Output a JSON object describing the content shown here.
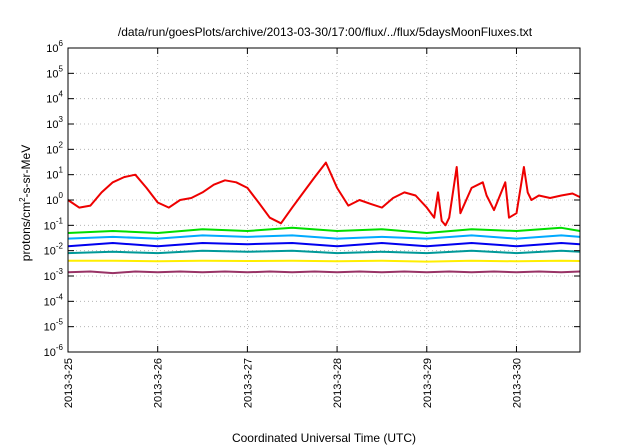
{
  "chart_data": {
    "type": "line",
    "title": "/data/run/goesPlots/archive/2013-03-30/17:00/flux/../flux/5daysMoonFluxes.txt",
    "xlabel": "Coordinated Universal Time (UTC)",
    "ylabel": {
      "prefix": "protons/cm",
      "exponent": "2",
      "suffix": "-s-sr-MeV"
    },
    "yscale": "log",
    "ylim": [
      1e-06,
      1000000.0
    ],
    "xlim": [
      "2013-03-25",
      "2013-03-30 17:00"
    ],
    "grid": true,
    "legend": "none",
    "x_ticks": [
      "2013-3-25",
      "2013-3-26",
      "2013-3-27",
      "2013-3-28",
      "2013-3-29",
      "2013-3-30"
    ],
    "y_ticks": [
      {
        "base": "10",
        "exp": "-6"
      },
      {
        "base": "10",
        "exp": "-5"
      },
      {
        "base": "10",
        "exp": "-4"
      },
      {
        "base": "10",
        "exp": "-3"
      },
      {
        "base": "10",
        "exp": "-2"
      },
      {
        "base": "10",
        "exp": "-1"
      },
      {
        "base": "10",
        "exp": "0"
      },
      {
        "base": "10",
        "exp": "1"
      },
      {
        "base": "10",
        "exp": "2"
      },
      {
        "base": "10",
        "exp": "3"
      },
      {
        "base": "10",
        "exp": "4"
      },
      {
        "base": "10",
        "exp": "5"
      },
      {
        "base": "10",
        "exp": "6"
      }
    ],
    "series": [
      {
        "color": "#ee0000",
        "x": [
          "2013-03-25 00:00",
          "2013-03-25 03:00",
          "2013-03-25 06:00",
          "2013-03-25 09:00",
          "2013-03-25 12:00",
          "2013-03-25 15:00",
          "2013-03-25 18:00",
          "2013-03-25 21:00",
          "2013-03-26 00:00",
          "2013-03-26 03:00",
          "2013-03-26 06:00",
          "2013-03-26 09:00",
          "2013-03-26 12:00",
          "2013-03-26 15:00",
          "2013-03-26 18:00",
          "2013-03-26 21:00",
          "2013-03-27 00:00",
          "2013-03-27 03:00",
          "2013-03-27 06:00",
          "2013-03-27 09:00",
          "2013-03-27 12:00",
          "2013-03-27 15:00",
          "2013-03-27 18:00",
          "2013-03-27 21:00",
          "2013-03-28 00:00",
          "2013-03-28 03:00",
          "2013-03-28 06:00",
          "2013-03-28 09:00",
          "2013-03-28 12:00",
          "2013-03-28 15:00",
          "2013-03-28 18:00",
          "2013-03-28 21:00",
          "2013-03-29 00:00",
          "2013-03-29 02:00",
          "2013-03-29 03:00",
          "2013-03-29 04:00",
          "2013-03-29 05:00",
          "2013-03-29 06:00",
          "2013-03-29 08:00",
          "2013-03-29 09:00",
          "2013-03-29 12:00",
          "2013-03-29 15:00",
          "2013-03-29 16:00",
          "2013-03-29 18:00",
          "2013-03-29 21:00",
          "2013-03-29 22:00",
          "2013-03-30 00:00",
          "2013-03-30 02:00",
          "2013-03-30 03:00",
          "2013-03-30 04:00",
          "2013-03-30 06:00",
          "2013-03-30 09:00",
          "2013-03-30 12:00",
          "2013-03-30 15:00",
          "2013-03-30 17:00"
        ],
        "values": [
          1.0,
          0.5,
          0.6,
          2.0,
          5.0,
          8.0,
          10.0,
          3.0,
          0.8,
          0.5,
          1.0,
          1.2,
          2.0,
          4.0,
          6.0,
          5.0,
          3.0,
          0.8,
          0.2,
          0.12,
          0.5,
          2.0,
          8.0,
          30.0,
          3.0,
          0.6,
          1.0,
          0.7,
          0.5,
          1.2,
          2.0,
          1.5,
          0.5,
          0.2,
          2.0,
          0.15,
          0.1,
          0.2,
          20.0,
          0.3,
          3.0,
          5.0,
          1.5,
          0.4,
          5.0,
          0.2,
          0.3,
          20.0,
          2.0,
          1.0,
          1.5,
          1.2,
          1.5,
          1.8,
          1.3
        ]
      },
      {
        "color": "#00dd00",
        "x": [
          "2013-03-25 00:00",
          "2013-03-25 12:00",
          "2013-03-26 00:00",
          "2013-03-26 12:00",
          "2013-03-27 00:00",
          "2013-03-27 12:00",
          "2013-03-28 00:00",
          "2013-03-28 12:00",
          "2013-03-29 00:00",
          "2013-03-29 12:00",
          "2013-03-30 00:00",
          "2013-03-30 12:00",
          "2013-03-30 17:00"
        ],
        "values": [
          0.05,
          0.06,
          0.05,
          0.07,
          0.06,
          0.08,
          0.06,
          0.07,
          0.05,
          0.07,
          0.06,
          0.08,
          0.06
        ]
      },
      {
        "color": "#00aaff",
        "x": [
          "2013-03-25 00:00",
          "2013-03-25 12:00",
          "2013-03-26 00:00",
          "2013-03-26 12:00",
          "2013-03-27 00:00",
          "2013-03-27 12:00",
          "2013-03-28 00:00",
          "2013-03-28 12:00",
          "2013-03-29 00:00",
          "2013-03-29 12:00",
          "2013-03-30 00:00",
          "2013-03-30 12:00",
          "2013-03-30 17:00"
        ],
        "values": [
          0.03,
          0.035,
          0.03,
          0.04,
          0.035,
          0.04,
          0.03,
          0.035,
          0.03,
          0.04,
          0.03,
          0.04,
          0.035
        ]
      },
      {
        "color": "#0000ee",
        "x": [
          "2013-03-25 00:00",
          "2013-03-25 12:00",
          "2013-03-26 00:00",
          "2013-03-26 12:00",
          "2013-03-27 00:00",
          "2013-03-27 12:00",
          "2013-03-28 00:00",
          "2013-03-28 12:00",
          "2013-03-29 00:00",
          "2013-03-29 12:00",
          "2013-03-30 00:00",
          "2013-03-30 12:00",
          "2013-03-30 17:00"
        ],
        "values": [
          0.015,
          0.02,
          0.015,
          0.02,
          0.018,
          0.02,
          0.015,
          0.02,
          0.015,
          0.02,
          0.015,
          0.02,
          0.018
        ]
      },
      {
        "color": "#009999",
        "x": [
          "2013-03-25 00:00",
          "2013-03-25 12:00",
          "2013-03-26 00:00",
          "2013-03-26 12:00",
          "2013-03-27 00:00",
          "2013-03-27 12:00",
          "2013-03-28 00:00",
          "2013-03-28 12:00",
          "2013-03-29 00:00",
          "2013-03-29 12:00",
          "2013-03-30 00:00",
          "2013-03-30 12:00",
          "2013-03-30 17:00"
        ],
        "values": [
          0.008,
          0.009,
          0.008,
          0.01,
          0.009,
          0.01,
          0.008,
          0.009,
          0.008,
          0.01,
          0.008,
          0.01,
          0.009
        ]
      },
      {
        "color": "#ffee00",
        "x": [
          "2013-03-25 00:00",
          "2013-03-25 12:00",
          "2013-03-26 00:00",
          "2013-03-26 12:00",
          "2013-03-27 00:00",
          "2013-03-27 12:00",
          "2013-03-28 00:00",
          "2013-03-28 12:00",
          "2013-03-29 00:00",
          "2013-03-29 12:00",
          "2013-03-30 00:00",
          "2013-03-30 12:00",
          "2013-03-30 17:00"
        ],
        "values": [
          0.004,
          0.004,
          0.0038,
          0.004,
          0.0039,
          0.004,
          0.0038,
          0.004,
          0.0037,
          0.004,
          0.0038,
          0.004,
          0.0039
        ]
      },
      {
        "color": "#993366",
        "x": [
          "2013-03-25 00:00",
          "2013-03-25 06:00",
          "2013-03-25 12:00",
          "2013-03-25 18:00",
          "2013-03-26 00:00",
          "2013-03-26 06:00",
          "2013-03-26 12:00",
          "2013-03-26 18:00",
          "2013-03-27 00:00",
          "2013-03-27 06:00",
          "2013-03-27 12:00",
          "2013-03-27 18:00",
          "2013-03-28 00:00",
          "2013-03-28 06:00",
          "2013-03-28 12:00",
          "2013-03-28 18:00",
          "2013-03-29 00:00",
          "2013-03-29 06:00",
          "2013-03-29 12:00",
          "2013-03-29 18:00",
          "2013-03-30 00:00",
          "2013-03-30 06:00",
          "2013-03-30 12:00",
          "2013-03-30 17:00"
        ],
        "values": [
          0.0014,
          0.0015,
          0.0013,
          0.0015,
          0.0014,
          0.0015,
          0.0014,
          0.0015,
          0.0014,
          0.0015,
          0.0014,
          0.0015,
          0.0014,
          0.0015,
          0.0014,
          0.0015,
          0.0014,
          0.0015,
          0.0014,
          0.0015,
          0.0014,
          0.0015,
          0.0014,
          0.0015
        ]
      }
    ]
  }
}
